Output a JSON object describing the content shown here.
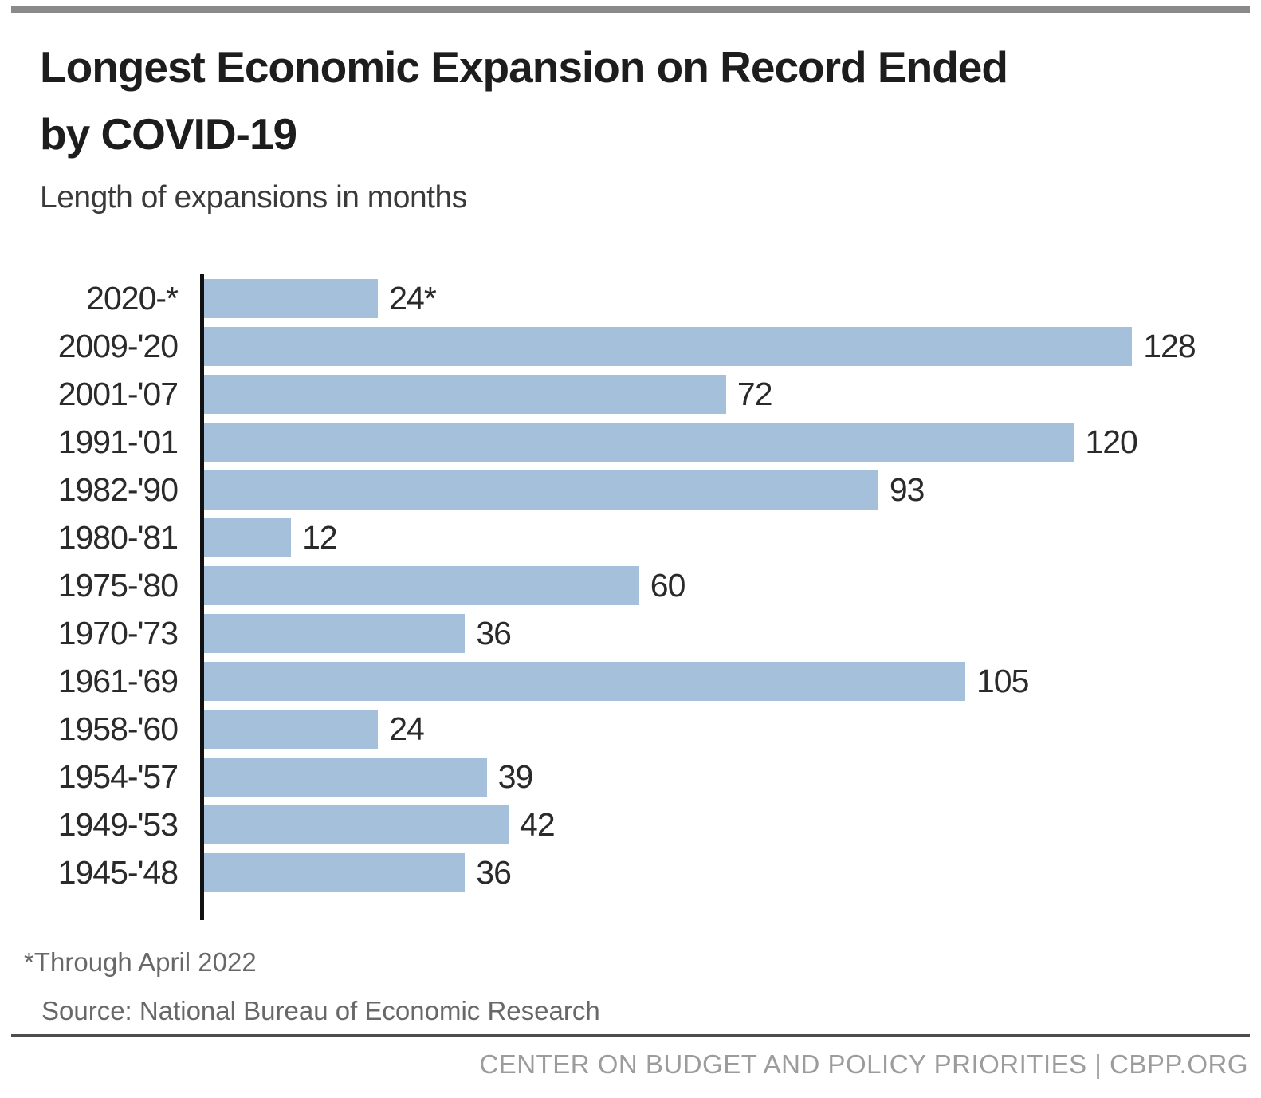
{
  "header": {
    "title_line1": "Longest Economic Expansion on Record Ended",
    "title_line2": "by COVID-19",
    "subtitle": "Length of expansions in months"
  },
  "chart_data": {
    "type": "bar",
    "orientation": "horizontal",
    "title": "Longest Economic Expansion on Record Ended by COVID-19",
    "subtitle": "Length of expansions in months",
    "categories": [
      "2020-*",
      "2009-'20",
      "2001-'07",
      "1991-'01",
      "1982-'90",
      "1980-'81",
      "1975-'80",
      "1970-'73",
      "1961-'69",
      "1958-'60",
      "1954-'57",
      "1949-'53",
      "1945-'48"
    ],
    "values": [
      24,
      128,
      72,
      120,
      93,
      12,
      60,
      36,
      105,
      24,
      39,
      42,
      36
    ],
    "value_labels": [
      "24*",
      "128",
      "72",
      "120",
      "93",
      "12",
      "60",
      "36",
      "105",
      "24",
      "39",
      "42",
      "36"
    ],
    "xlim": [
      0,
      128
    ],
    "grid": false,
    "legend": false,
    "bar_color": "#a4c0da",
    "axis_color": "#111111"
  },
  "footnotes": {
    "asterisk_note": "*Through April 2022",
    "source": "Source: National Bureau of Economic Research"
  },
  "footer": {
    "credit": "CENTER ON BUDGET AND POLICY PRIORITIES | CBPP.ORG"
  },
  "colors": {
    "top_rule": "#8a8a8a",
    "footer_rule": "#4d4d4d"
  }
}
